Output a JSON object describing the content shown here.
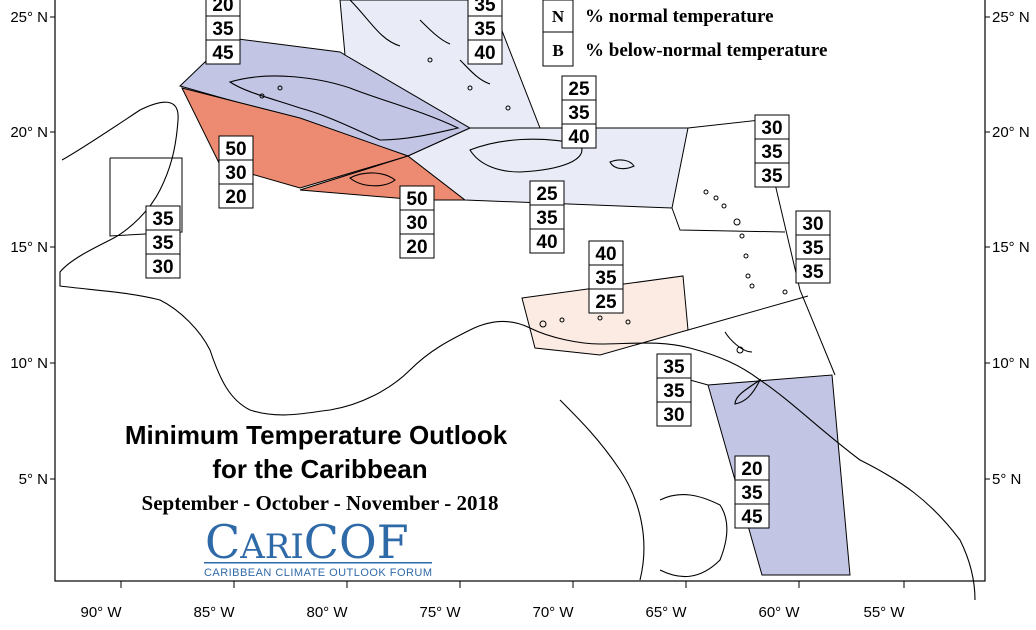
{
  "map": {
    "title_line1": "Minimum Temperature Outlook",
    "title_line2": "for the Caribbean",
    "period": "September - October - November - 2018",
    "logo": {
      "text": "CariCOF",
      "subtitle": "CARIBBEAN CLIMATE OUTLOOK FORUM"
    },
    "legend": [
      {
        "key": "N",
        "label": "% normal temperature"
      },
      {
        "key": "B",
        "label": "% below-normal temperature"
      }
    ],
    "lat_labels": [
      "25° N",
      "20° N",
      "15° N",
      "10° N",
      "5° N"
    ],
    "lon_labels": [
      "90° W",
      "85° W",
      "80° W",
      "75° W",
      "70° W",
      "65° W",
      "60° W",
      "55° W"
    ],
    "colors": {
      "strong_below": "#c2c5e4",
      "weak_below": "#e9ebf7",
      "above": "#ec8b72",
      "weak_above": "#fbebe3",
      "logo": "#2f6aa8"
    },
    "zones": [
      {
        "region": "bahamas",
        "values": [
          "35",
          "35",
          "40"
        ]
      },
      {
        "region": "cuba",
        "values": [
          "20",
          "35",
          "45"
        ]
      },
      {
        "region": "jamaica-cayman-west",
        "values": [
          "50",
          "30",
          "20"
        ]
      },
      {
        "region": "jamaica",
        "values": [
          "50",
          "30",
          "20"
        ]
      },
      {
        "region": "belize",
        "values": [
          "35",
          "35",
          "30"
        ]
      },
      {
        "region": "turks-caicos",
        "values": [
          "25",
          "35",
          "40"
        ]
      },
      {
        "region": "hispaniola",
        "values": [
          "25",
          "35",
          "40"
        ]
      },
      {
        "region": "northern-leewards",
        "values": [
          "30",
          "35",
          "35"
        ]
      },
      {
        "region": "windwards",
        "values": [
          "30",
          "35",
          "35"
        ]
      },
      {
        "region": "abc-islands",
        "values": [
          "40",
          "35",
          "25"
        ]
      },
      {
        "region": "trinidad",
        "values": [
          "35",
          "35",
          "30"
        ]
      },
      {
        "region": "guianas",
        "values": [
          "20",
          "35",
          "45"
        ]
      }
    ]
  }
}
